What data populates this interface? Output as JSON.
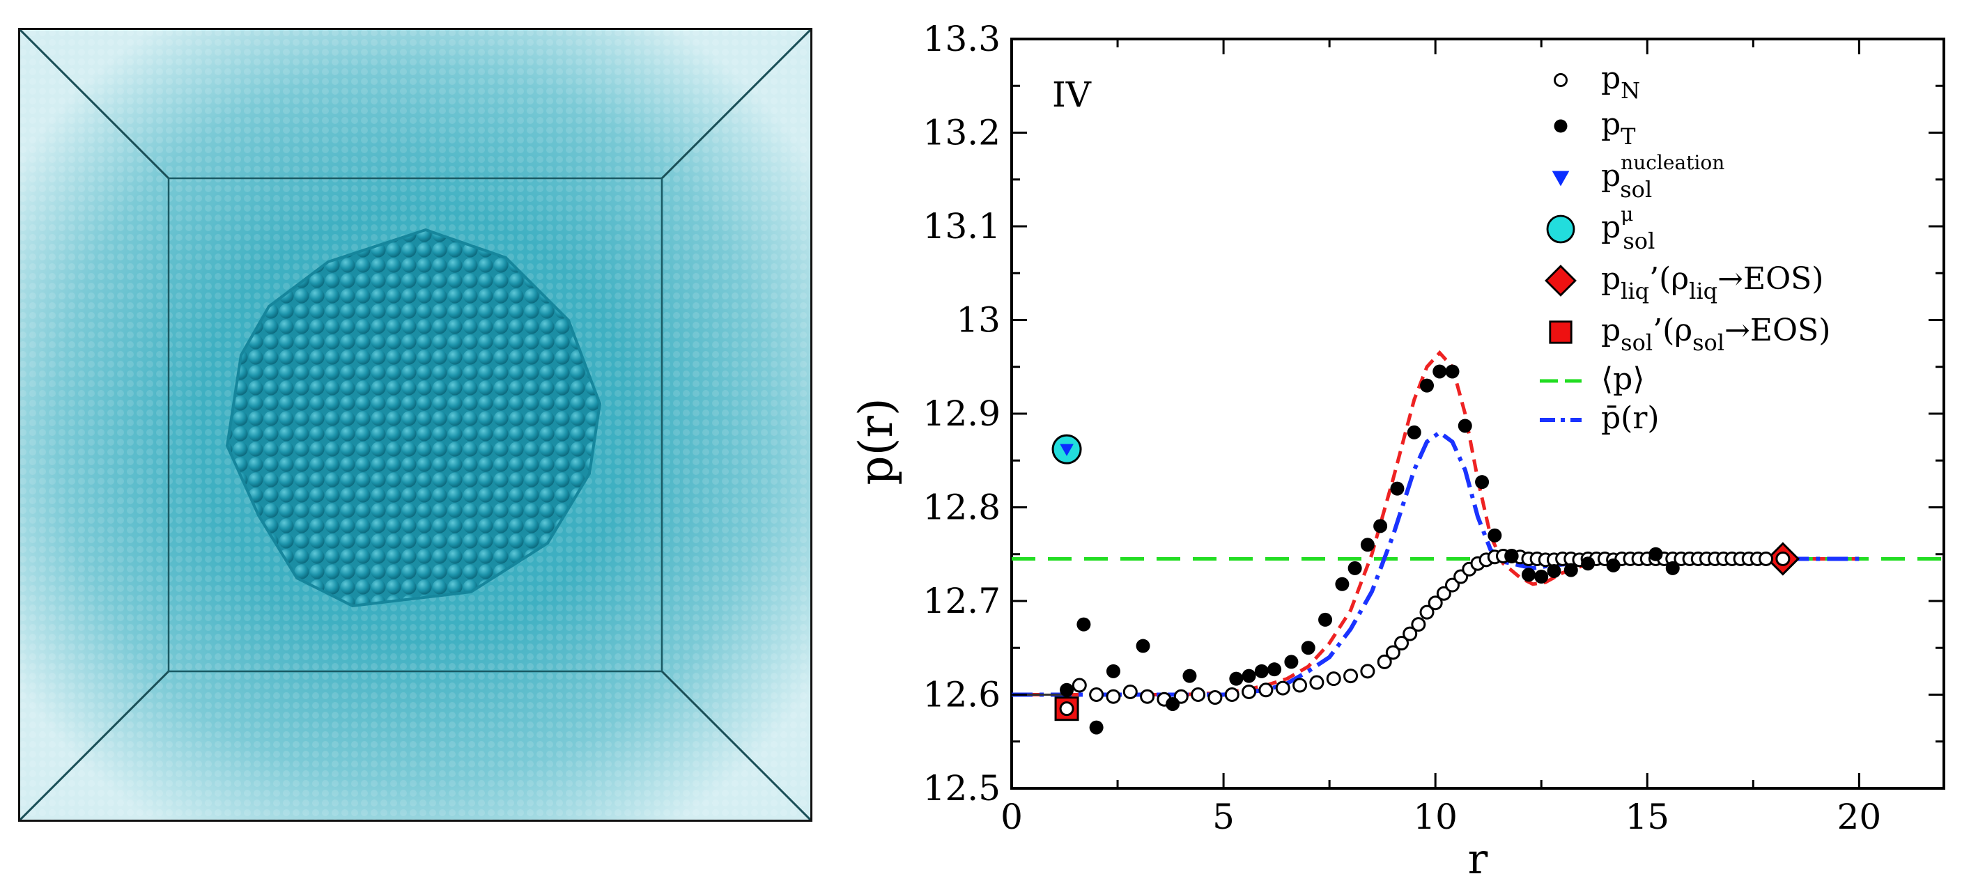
{
  "chart_data": {
    "type": "scatter",
    "panel_label": "IV",
    "xlabel": "r",
    "ylabel": "p(r)",
    "xlim": [
      0,
      22
    ],
    "ylim": [
      12.5,
      13.3
    ],
    "x_ticks": [
      0,
      5,
      10,
      15,
      20
    ],
    "x_tick_labels": [
      "0",
      "5",
      "10",
      "15",
      "20"
    ],
    "y_ticks": [
      12.5,
      12.6,
      12.7,
      12.8,
      12.9,
      13.0,
      13.1,
      13.2,
      13.3
    ],
    "y_tick_labels": [
      "12.5",
      "12.6",
      "12.7",
      "12.8",
      "12.9",
      "13",
      "13.1",
      "13.2",
      "13.3"
    ],
    "legend_position": "top-right",
    "legend": [
      {
        "key": "pN",
        "base": "p",
        "sub": "N",
        "sup": "",
        "tail": "",
        "tail_sub": "",
        "tail2": "",
        "marker": "open-circle"
      },
      {
        "key": "pT",
        "base": "p",
        "sub": "T",
        "sup": "",
        "tail": "",
        "tail_sub": "",
        "tail2": "",
        "marker": "filled-circle"
      },
      {
        "key": "nucleation",
        "base": "p",
        "sub": "sol",
        "sup": "nucleation",
        "tail": "",
        "tail_sub": "",
        "tail2": "",
        "marker": "blue-triangle"
      },
      {
        "key": "mu",
        "base": "p",
        "sub": "sol",
        "sup": "μ",
        "tail": "",
        "tail_sub": "",
        "tail2": "",
        "marker": "cyan-circle"
      },
      {
        "key": "liq",
        "base": "p",
        "sub": "liq",
        "sup": "",
        "tail": "’(ρ",
        "tail_sub": "liq",
        "tail2": "→EOS)",
        "marker": "red-diamond"
      },
      {
        "key": "sol",
        "base": "p",
        "sub": "sol",
        "sup": "",
        "tail": "’(ρ",
        "tail_sub": "sol",
        "tail2": "→EOS)",
        "marker": "red-square"
      },
      {
        "key": "mean",
        "base": "⟨p⟩",
        "sub": "",
        "sup": "",
        "tail": "",
        "tail_sub": "",
        "tail2": "",
        "marker": "green-dash"
      },
      {
        "key": "pbar",
        "base": "p̄(r)",
        "sub": "",
        "sup": "",
        "tail": "",
        "tail_sub": "",
        "tail2": "",
        "marker": "blue-dashdot"
      }
    ],
    "series": [
      {
        "name": "pN",
        "marker": "open-circle",
        "x": [
          1.3,
          1.6,
          2.0,
          2.4,
          2.8,
          3.2,
          3.6,
          4.0,
          4.4,
          4.8,
          5.2,
          5.6,
          6.0,
          6.4,
          6.8,
          7.2,
          7.6,
          8.0,
          8.4,
          8.8,
          9.0,
          9.2,
          9.4,
          9.6,
          9.8,
          10.0,
          10.2,
          10.4,
          10.6,
          10.8,
          11.0,
          11.2,
          11.4,
          11.6,
          11.8,
          12.0,
          12.2,
          12.4,
          12.6,
          12.8,
          13.0,
          13.2,
          13.4,
          13.6,
          13.8,
          14.0,
          14.2,
          14.4,
          14.6,
          14.8,
          15.0,
          15.2,
          15.4,
          15.6,
          15.8,
          16.0,
          16.2,
          16.4,
          16.6,
          16.8,
          17.0,
          17.2,
          17.4,
          17.6,
          17.8,
          18.2
        ],
        "y": [
          12.585,
          12.61,
          12.6,
          12.598,
          12.603,
          12.598,
          12.595,
          12.598,
          12.6,
          12.597,
          12.6,
          12.603,
          12.605,
          12.607,
          12.61,
          12.613,
          12.617,
          12.62,
          12.625,
          12.635,
          12.645,
          12.655,
          12.665,
          12.675,
          12.688,
          12.698,
          12.708,
          12.717,
          12.726,
          12.734,
          12.74,
          12.744,
          12.747,
          12.748,
          12.748,
          12.747,
          12.745,
          12.745,
          12.744,
          12.744,
          12.745,
          12.745,
          12.744,
          12.745,
          12.745,
          12.745,
          12.744,
          12.745,
          12.745,
          12.745,
          12.745,
          12.745,
          12.745,
          12.745,
          12.745,
          12.745,
          12.745,
          12.745,
          12.745,
          12.745,
          12.745,
          12.745,
          12.745,
          12.745,
          12.745,
          12.745
        ]
      },
      {
        "name": "pT",
        "marker": "filled-circle",
        "x": [
          1.3,
          1.7,
          2.0,
          2.4,
          3.1,
          3.8,
          4.2,
          5.3,
          5.6,
          5.9,
          6.2,
          6.6,
          7.0,
          7.4,
          7.8,
          8.1,
          8.4,
          8.7,
          9.1,
          9.5,
          9.8,
          10.1,
          10.4,
          10.7,
          11.1,
          11.4,
          11.8,
          12.2,
          12.5,
          12.8,
          13.2,
          13.6,
          14.2,
          15.2,
          15.6
        ],
        "y": [
          12.605,
          12.675,
          12.565,
          12.625,
          12.652,
          12.59,
          12.62,
          12.617,
          12.62,
          12.625,
          12.627,
          12.635,
          12.65,
          12.68,
          12.718,
          12.735,
          12.76,
          12.78,
          12.82,
          12.88,
          12.93,
          12.945,
          12.945,
          12.887,
          12.827,
          12.77,
          12.748,
          12.728,
          12.726,
          12.732,
          12.733,
          12.74,
          12.738,
          12.75,
          12.735
        ]
      }
    ],
    "special_points": [
      {
        "name": "psol nucleation",
        "marker": "blue-triangle",
        "x": 1.3,
        "y": 12.862
      },
      {
        "name": "psol mu",
        "marker": "cyan-circle",
        "x": 1.3,
        "y": 12.862
      },
      {
        "name": "pliq EOS",
        "marker": "red-diamond",
        "x": 18.2,
        "y": 12.745
      },
      {
        "name": "psol EOS",
        "marker": "red-square",
        "x": 1.3,
        "y": 12.585
      }
    ],
    "lines": [
      {
        "name": "mean p",
        "style": "green-dash",
        "x": [
          0,
          22
        ],
        "y": [
          12.745,
          12.745
        ]
      },
      {
        "name": "red dashed fit",
        "style": "red-dash",
        "x": [
          0,
          1,
          2,
          3,
          4,
          5,
          5.5,
          6,
          6.5,
          7,
          7.5,
          8,
          8.5,
          9,
          9.5,
          9.8,
          10.1,
          10.4,
          10.7,
          11,
          11.3,
          11.6,
          12,
          12.3,
          12.6,
          13,
          13.5,
          14,
          15,
          16,
          17,
          18,
          20
        ],
        "y": [
          12.6,
          12.6,
          12.6,
          12.6,
          12.6,
          12.602,
          12.605,
          12.61,
          12.617,
          12.63,
          12.655,
          12.69,
          12.75,
          12.83,
          12.915,
          12.95,
          12.965,
          12.95,
          12.9,
          12.83,
          12.77,
          12.74,
          12.725,
          12.718,
          12.72,
          12.73,
          12.738,
          12.742,
          12.745,
          12.745,
          12.745,
          12.745,
          12.745
        ]
      },
      {
        "name": "pbar(r)",
        "style": "blue-dashdot",
        "x": [
          0,
          5,
          6,
          6.5,
          7,
          7.5,
          8,
          8.5,
          9,
          9.5,
          9.8,
          10.1,
          10.4,
          10.7,
          11,
          11.3,
          11.6,
          12,
          12.3,
          12.6,
          13,
          13.5,
          14,
          15,
          16,
          17,
          18,
          20
        ],
        "y": [
          12.6,
          12.6,
          12.605,
          12.612,
          12.625,
          12.64,
          12.67,
          12.71,
          12.77,
          12.84,
          12.87,
          12.88,
          12.87,
          12.84,
          12.79,
          12.755,
          12.742,
          12.738,
          12.735,
          12.737,
          12.739,
          12.741,
          12.743,
          12.745,
          12.745,
          12.745,
          12.745,
          12.745
        ]
      }
    ],
    "colors": {
      "mean": "#22dd22",
      "fit": "#ee2222",
      "pbar": "#1a33ff",
      "diamond": "#ee1111",
      "cyan": "#22dddd",
      "triangle": "#0a2dff"
    }
  }
}
